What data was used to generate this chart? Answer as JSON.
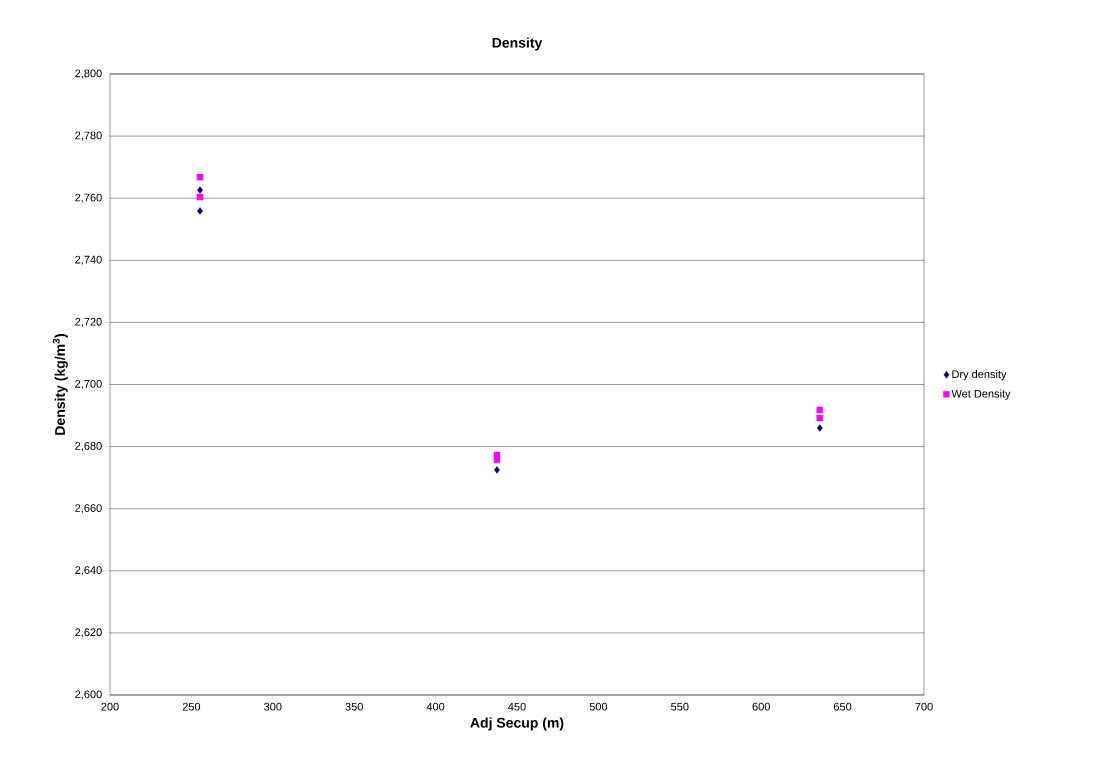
{
  "chart_data": {
    "type": "scatter",
    "title": "Density",
    "xlabel": "Adj Secup (m)",
    "ylabel": "Density (kg/m$^{3}$)",
    "xlim": [
      200,
      700
    ],
    "xticks": [
      200,
      250,
      300,
      350,
      400,
      450,
      500,
      550,
      600,
      650,
      700
    ],
    "ylim": [
      2600,
      2800
    ],
    "yticks": [
      {
        "value": 2600,
        "label": "2,600"
      },
      {
        "value": 2620,
        "label": "2,620"
      },
      {
        "value": 2640,
        "label": "2,640"
      },
      {
        "value": 2660,
        "label": "2,660"
      },
      {
        "value": 2680,
        "label": "2,680"
      },
      {
        "value": 2700,
        "label": "2,700"
      },
      {
        "value": 2720,
        "label": "2,720"
      },
      {
        "value": 2740,
        "label": "2,740"
      },
      {
        "value": 2760,
        "label": "2,760"
      },
      {
        "value": 2780,
        "label": "2,780"
      },
      {
        "value": 2800,
        "label": "2,800"
      }
    ],
    "grid": "y",
    "legend": "right",
    "series": [
      {
        "name": "Dry density",
        "color": "#000080",
        "marker": "diamond",
        "x": [
          255.3,
          255.3,
          437.7,
          636
        ],
        "values": [
          2755.9,
          2762.6,
          2672.5,
          2686
        ]
      },
      {
        "name": "Wet Density",
        "color": "#ff00ff",
        "marker": "square",
        "x": [
          255.3,
          255.3,
          437.7,
          437.7,
          636,
          636
        ],
        "values": [
          2766.8,
          2760.4,
          2677.3,
          2675.7,
          2691.8,
          2689.2
        ]
      }
    ]
  }
}
